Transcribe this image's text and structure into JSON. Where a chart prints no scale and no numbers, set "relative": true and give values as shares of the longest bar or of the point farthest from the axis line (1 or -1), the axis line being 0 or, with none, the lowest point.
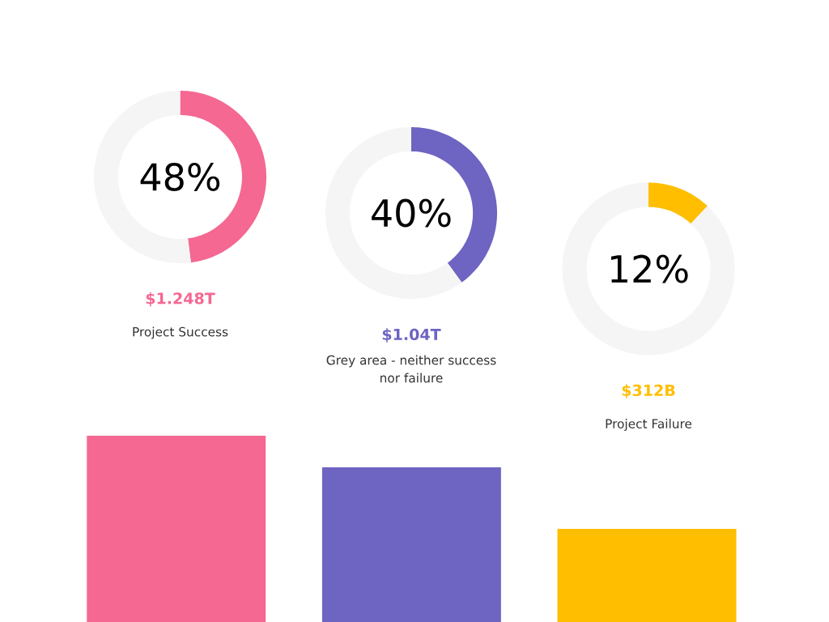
{
  "chart_data": [
    {
      "type": "donut",
      "categories": [
        null,
        null
      ],
      "values": [
        48,
        52
      ],
      "colors": [
        "#f46892",
        "#f5f5f5"
      ],
      "annotations": [
        "48%",
        "$1.248T",
        "Project Success"
      ]
    },
    {
      "type": "donut",
      "categories": [
        null,
        null
      ],
      "values": [
        40,
        60
      ],
      "colors": [
        "#6e64c1",
        "#f5f5f5"
      ],
      "annotations": [
        "40%",
        "$1.04T",
        "Grey area - neither success nor failure"
      ]
    },
    {
      "type": "donut",
      "categories": [
        null,
        null
      ],
      "values": [
        12,
        88
      ],
      "colors": [
        "#ffbe00",
        "#f5f5f5"
      ],
      "annotations": [
        "12%",
        "$312B",
        "Project Failure"
      ]
    },
    {
      "type": "bar",
      "categories": [
        null,
        null,
        null
      ],
      "values": [
        1,
        0.83,
        0.5
      ],
      "colors": [
        "#f46892",
        "#6e64c1",
        "#ffbe00"
      ],
      "relative": true
    }
  ]
}
